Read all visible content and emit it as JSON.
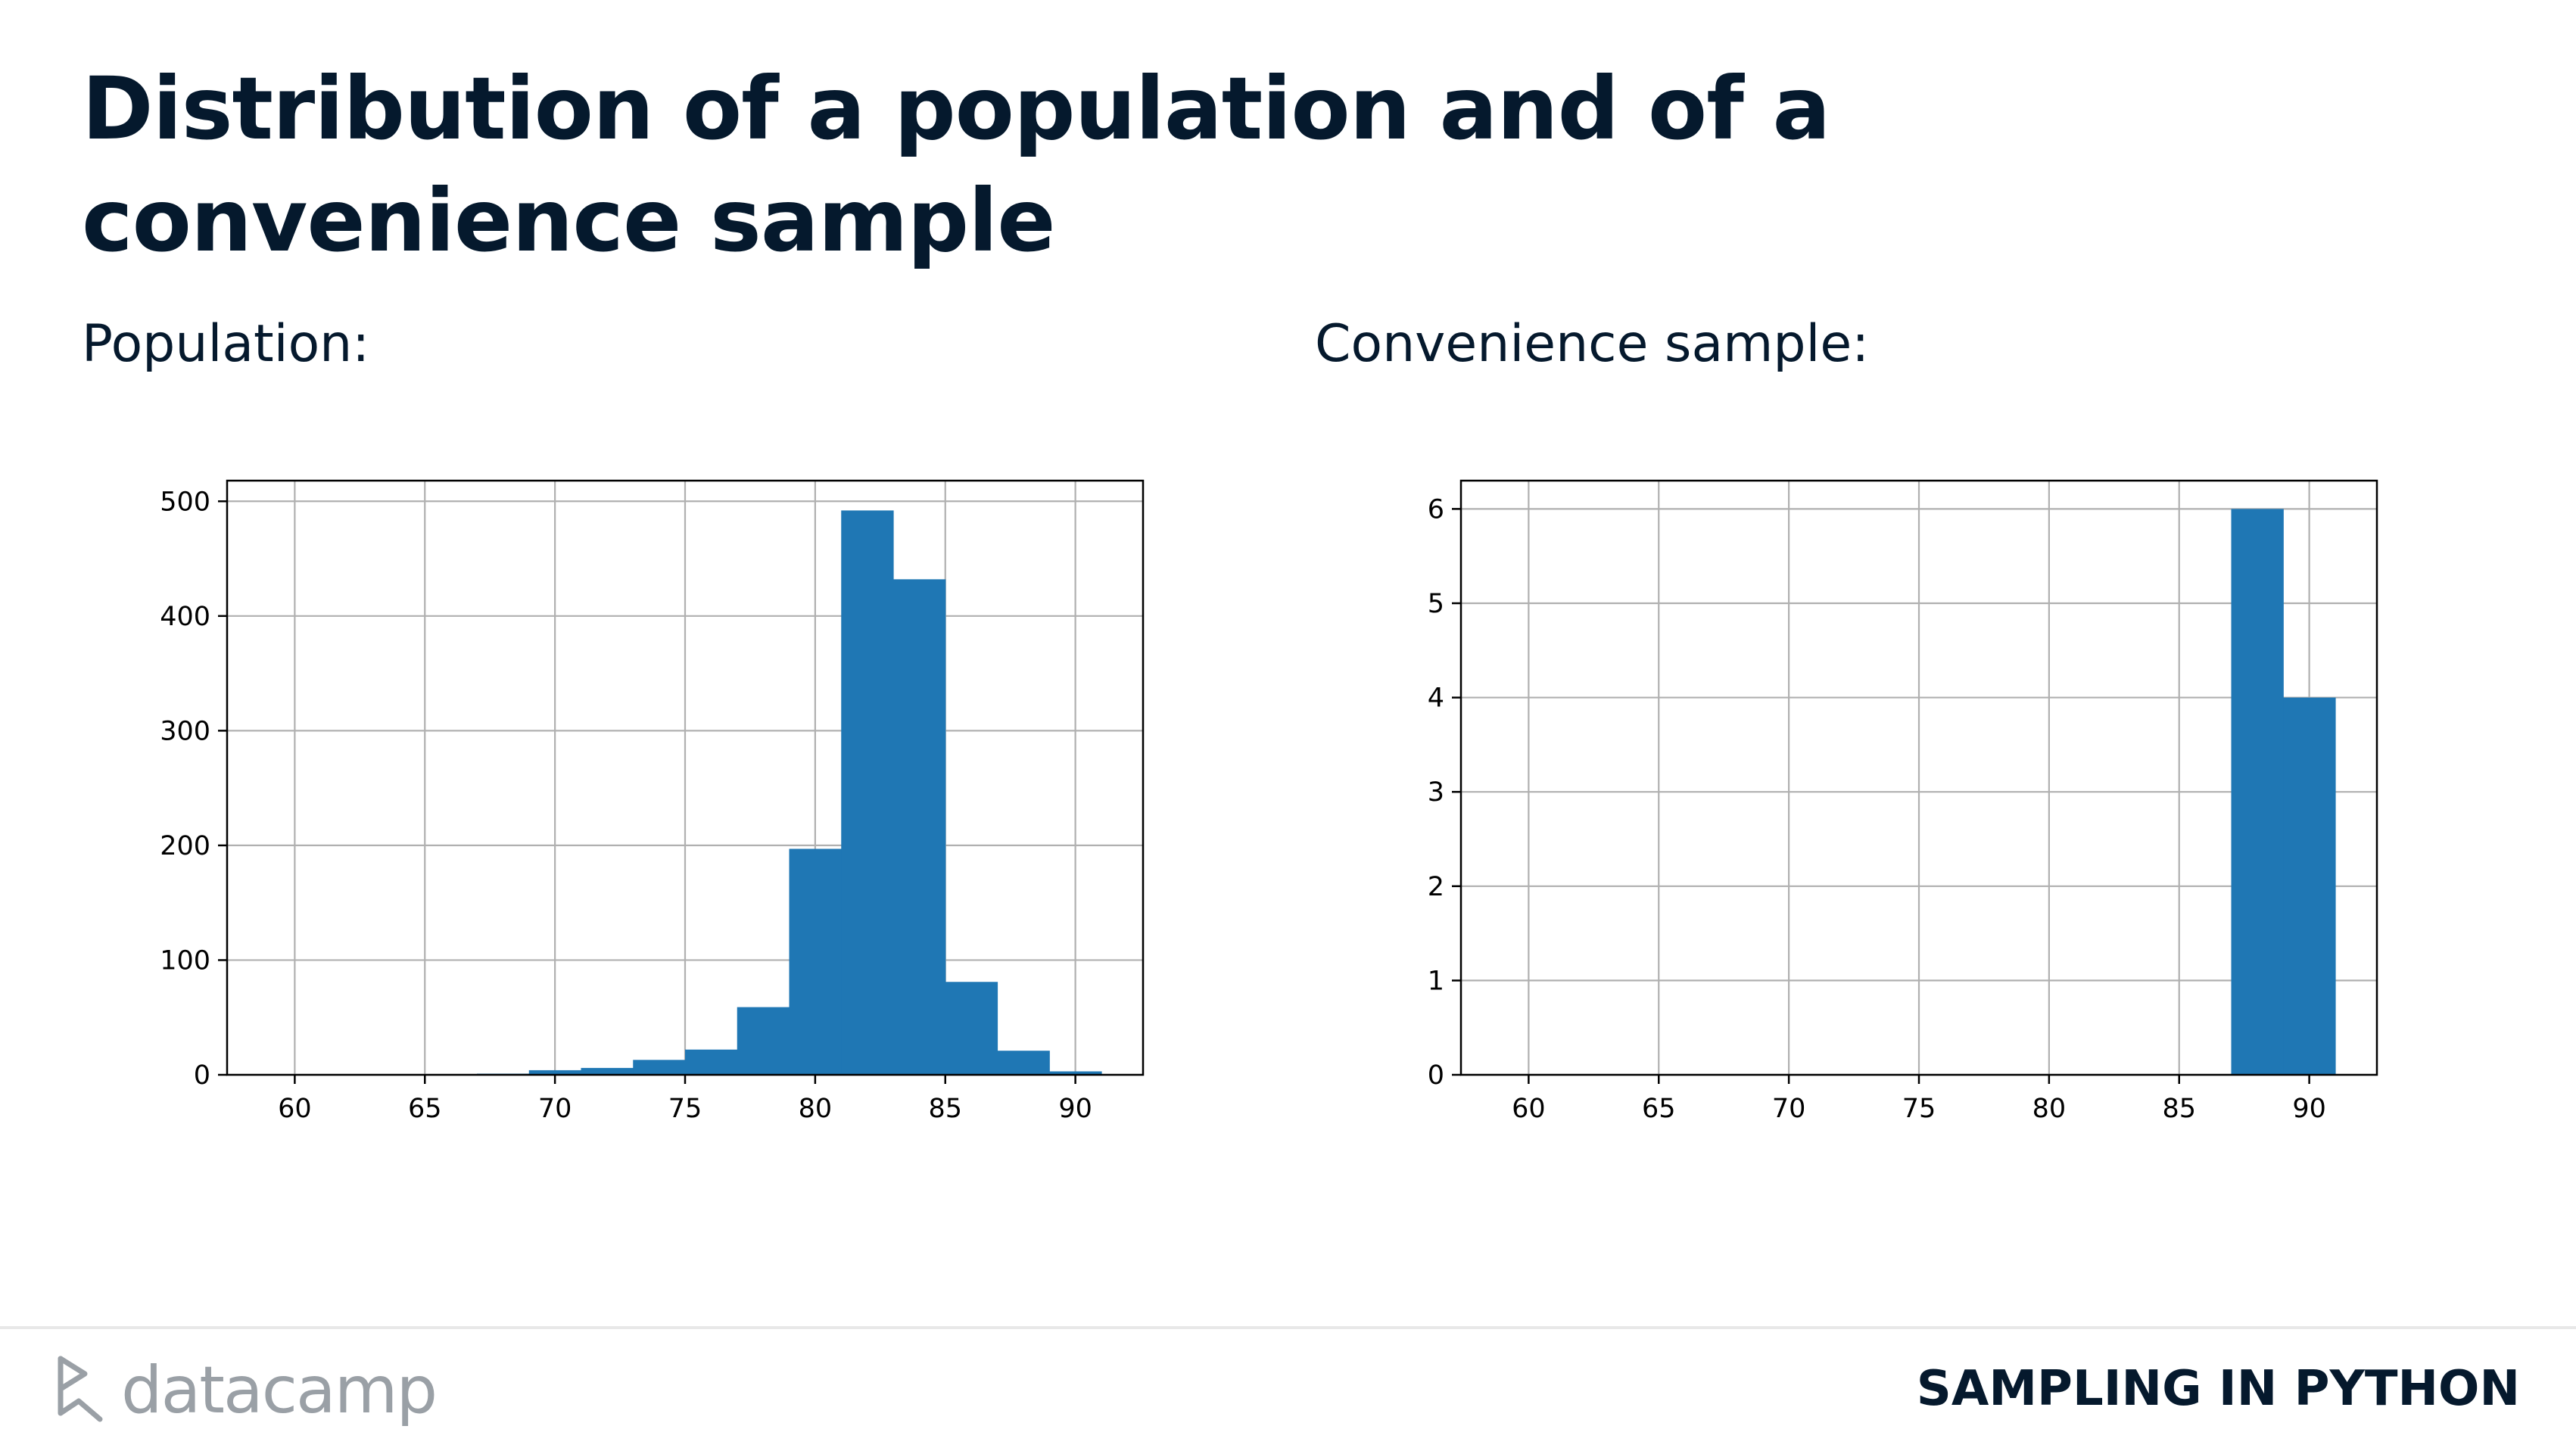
{
  "slide": {
    "title": "Distribution of a population and of a convenience sample",
    "course": "SAMPLING IN PYTHON",
    "logo_text": "datacamp"
  },
  "panels": {
    "population_label": "Population:",
    "convenience_label": "Convenience sample:"
  },
  "colors": {
    "bar": "#1f77b4",
    "grid": "#b0b0b0",
    "text": "#05192d",
    "logo": "#9aa0a6"
  },
  "chart_data": [
    {
      "type": "bar",
      "xlim": [
        57.4,
        92.6
      ],
      "ylim": [
        0,
        518
      ],
      "xticks": [
        60,
        65,
        70,
        75,
        80,
        85,
        90
      ],
      "yticks": [
        0,
        100,
        200,
        300,
        400,
        500
      ],
      "grid": true,
      "bins": [
        {
          "x0": 59,
          "x1": 61,
          "value": 0
        },
        {
          "x0": 61,
          "x1": 63,
          "value": 0
        },
        {
          "x0": 63,
          "x1": 65,
          "value": 0
        },
        {
          "x0": 65,
          "x1": 67,
          "value": 0
        },
        {
          "x0": 67,
          "x1": 69,
          "value": 1
        },
        {
          "x0": 69,
          "x1": 71,
          "value": 4
        },
        {
          "x0": 71,
          "x1": 73,
          "value": 6
        },
        {
          "x0": 73,
          "x1": 75,
          "value": 13
        },
        {
          "x0": 75,
          "x1": 77,
          "value": 22
        },
        {
          "x0": 77,
          "x1": 79,
          "value": 59
        },
        {
          "x0": 79,
          "x1": 81,
          "value": 197
        },
        {
          "x0": 81,
          "x1": 83,
          "value": 492
        },
        {
          "x0": 83,
          "x1": 85,
          "value": 432
        },
        {
          "x0": 85,
          "x1": 87,
          "value": 81
        },
        {
          "x0": 87,
          "x1": 89,
          "value": 21
        },
        {
          "x0": 89,
          "x1": 91,
          "value": 3
        }
      ]
    },
    {
      "type": "bar",
      "xlim": [
        57.4,
        92.6
      ],
      "ylim": [
        0,
        6.3
      ],
      "xticks": [
        60,
        65,
        70,
        75,
        80,
        85,
        90
      ],
      "yticks": [
        0,
        1,
        2,
        3,
        4,
        5,
        6
      ],
      "grid": true,
      "bins": [
        {
          "x0": 87,
          "x1": 89,
          "value": 6
        },
        {
          "x0": 89,
          "x1": 91,
          "value": 4
        }
      ]
    }
  ]
}
